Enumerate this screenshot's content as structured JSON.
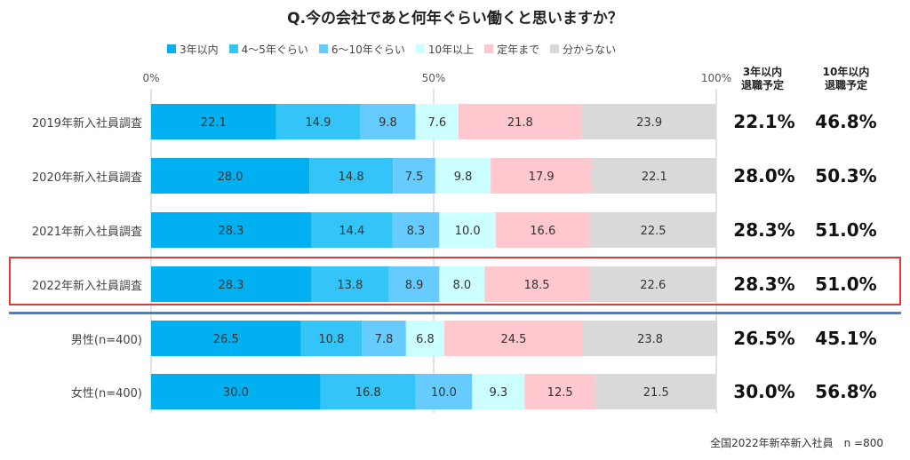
{
  "chart_data": {
    "type": "bar",
    "orientation": "horizontal-stacked-100",
    "title": "Q.今の会社であと何年ぐらい働くと思いますか？",
    "legend_position": "top",
    "axis_ticks": [
      "0%",
      "50%",
      "100%"
    ],
    "xlim": [
      0,
      100
    ],
    "grid": true,
    "categories": [
      "2019年新入社員調査",
      "2020年新入社員調査",
      "2021年新入社員調査",
      "2022年新入社員調査",
      "男性(n=400)",
      "女性(n=400)"
    ],
    "series": [
      {
        "name": "3年以内",
        "color": "#00b0f0",
        "values": [
          22.1,
          28.0,
          28.3,
          28.3,
          26.5,
          30.0
        ]
      },
      {
        "name": "4～5年ぐらい",
        "color": "#33c5f7",
        "values": [
          14.9,
          14.8,
          14.4,
          13.8,
          10.8,
          16.8
        ]
      },
      {
        "name": "6～10年ぐらい",
        "color": "#66ccff",
        "values": [
          9.8,
          7.5,
          8.3,
          8.9,
          7.8,
          10.0
        ]
      },
      {
        "name": "10年以上",
        "color": "#ccffff",
        "values": [
          7.6,
          9.8,
          10.0,
          8.0,
          6.8,
          9.3
        ]
      },
      {
        "name": "定年まで",
        "color": "#ffc7ce",
        "values": [
          21.8,
          17.9,
          16.6,
          18.5,
          24.5,
          12.5
        ]
      },
      {
        "name": "分からない",
        "color": "#d9d9d9",
        "values": [
          23.9,
          22.1,
          22.5,
          22.6,
          23.8,
          21.5
        ]
      }
    ],
    "bar_labels": [
      [
        "22.1",
        "14.9",
        "9.8",
        "7.6",
        "21.8",
        "23.9"
      ],
      [
        "28.0",
        "14.8",
        "7.5",
        "9.8",
        "17.9",
        "22.1"
      ],
      [
        "28.3",
        "14.4",
        "8.3",
        "10.0",
        "16.6",
        "22.5"
      ],
      [
        "28.3",
        "13.8",
        "8.9",
        "8.0",
        "18.5",
        "22.6"
      ],
      [
        "26.5",
        "10.8",
        "7.8",
        "6.8",
        "24.5",
        "23.8"
      ],
      [
        "30.0",
        "16.8",
        "10.0",
        "9.3",
        "12.5",
        "21.5"
      ]
    ],
    "summary_columns": {
      "header_1": [
        "3年以内",
        "退職予定"
      ],
      "header_2": [
        "10年以内",
        "退職予定"
      ],
      "col_1": [
        "22.1%",
        "28.0%",
        "28.3%",
        "28.3%",
        "26.5%",
        "30.0%"
      ],
      "col_2": [
        "46.8%",
        "50.3%",
        "51.0%",
        "51.0%",
        "45.1%",
        "56.8%"
      ]
    },
    "highlighted_category": "2022年新入社員調査",
    "highlight_color": "#e53935",
    "divider_color": "#4a7fc1"
  },
  "footnote": "全国2022年新卒新入社員　n =800"
}
